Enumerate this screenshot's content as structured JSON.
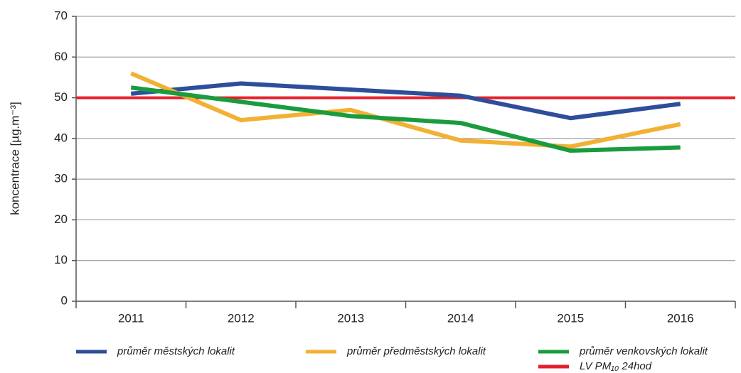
{
  "chart_data": {
    "type": "line",
    "y_label": "koncentrace [µg.m⁻³]",
    "categories": [
      "2011",
      "2012",
      "2013",
      "2014",
      "2015",
      "2016"
    ],
    "series": [
      {
        "name": "průměr městských lokalit",
        "color": "#2e4d9b",
        "values": [
          51,
          53.5,
          52,
          50.5,
          45,
          48.5
        ]
      },
      {
        "name": "průměr předměstských lokalit",
        "color": "#f2b134",
        "values": [
          56,
          44.5,
          47,
          39.5,
          38,
          43.5
        ]
      },
      {
        "name": "průměr venkovských lokalit",
        "color": "#1a9c3e",
        "values": [
          52.5,
          49,
          45.5,
          43.8,
          37,
          37.8
        ]
      }
    ],
    "limit": {
      "name": "LV PM₁₀ 24hod",
      "color": "#e3202a",
      "value": 50
    },
    "ylim": [
      0,
      70
    ],
    "yticks": [
      0,
      10,
      20,
      30,
      40,
      50,
      60,
      70
    ],
    "grid": true
  }
}
